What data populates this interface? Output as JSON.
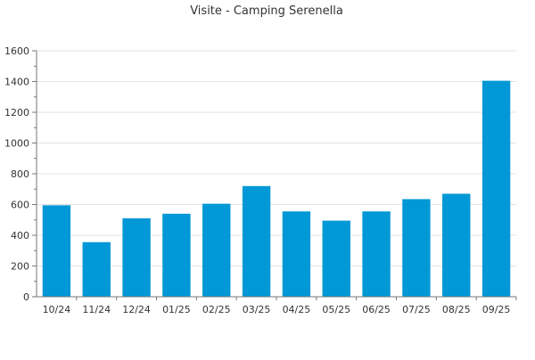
{
  "chart_data": {
    "type": "bar",
    "title": "Visite - Camping Serenella",
    "categories": [
      "10/24",
      "11/24",
      "12/24",
      "01/25",
      "02/25",
      "03/25",
      "04/25",
      "05/25",
      "06/25",
      "07/25",
      "08/25",
      "09/25"
    ],
    "values": [
      595,
      355,
      510,
      540,
      605,
      720,
      555,
      495,
      555,
      635,
      670,
      1405
    ],
    "ylim": [
      0,
      1600
    ],
    "yticks": [
      0,
      200,
      400,
      600,
      800,
      1000,
      1200,
      1400,
      1600
    ],
    "grid": true,
    "bar_color": "#0098d6"
  }
}
